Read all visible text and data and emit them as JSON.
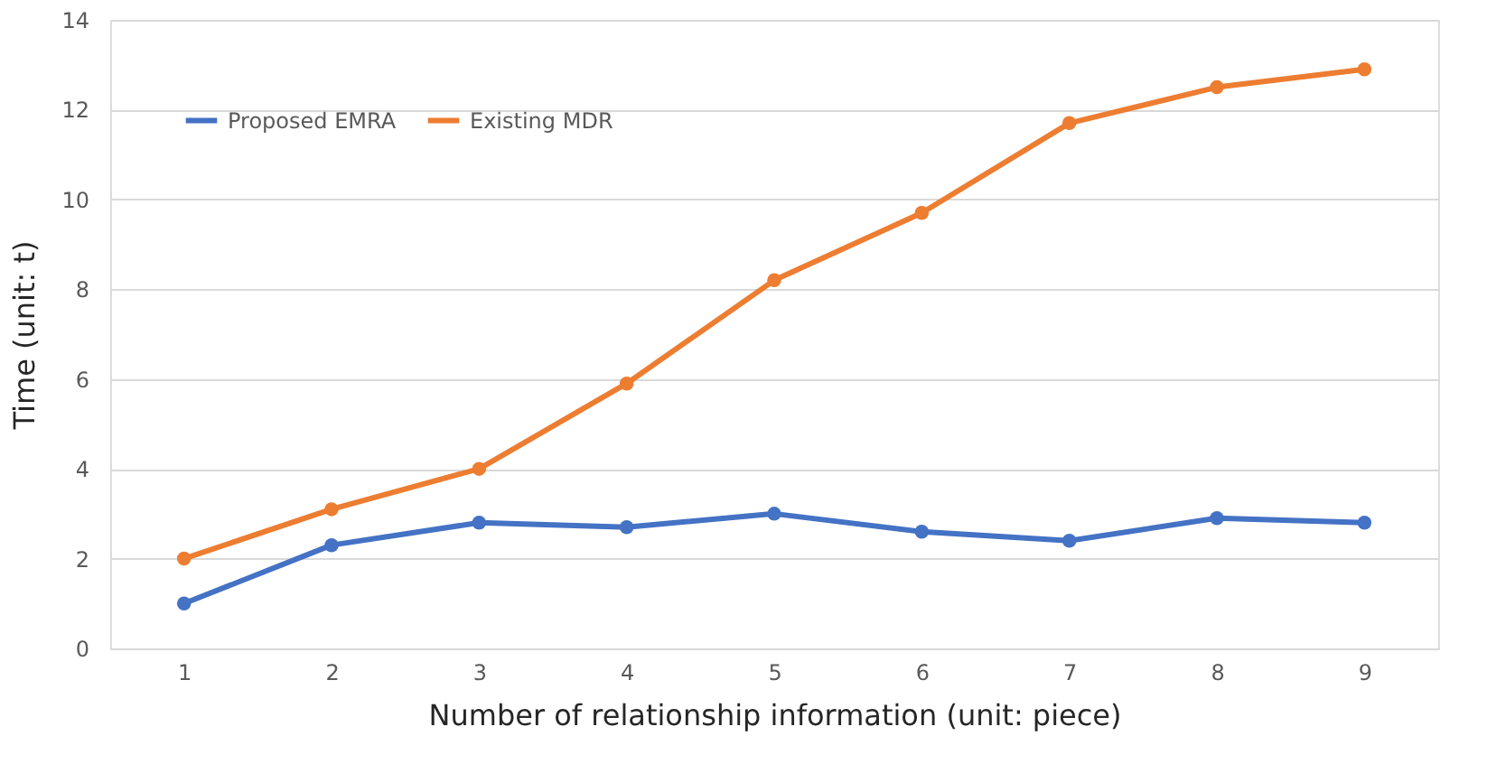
{
  "chart_data": {
    "type": "line",
    "xlabel": "Number of relationship information (unit: piece)",
    "ylabel": "Time (unit: t)",
    "categories": [
      "1",
      "2",
      "3",
      "4",
      "5",
      "6",
      "7",
      "8",
      "9"
    ],
    "series": [
      {
        "name": "Proposed EMRA",
        "color": "#4472c4",
        "values": [
          1.0,
          2.3,
          2.8,
          2.7,
          3.0,
          2.6,
          2.4,
          2.9,
          2.8
        ]
      },
      {
        "name": "Existing MDR",
        "color": "#ed7d31",
        "values": [
          2.0,
          3.1,
          4.0,
          5.9,
          8.2,
          9.7,
          11.7,
          12.5,
          12.9
        ]
      }
    ],
    "ylim": [
      0,
      14
    ],
    "yticks": [
      0,
      2,
      4,
      6,
      8,
      10,
      12,
      14
    ],
    "grid": "y",
    "legend": "top left",
    "marker": "circle",
    "line_style": "solid"
  }
}
